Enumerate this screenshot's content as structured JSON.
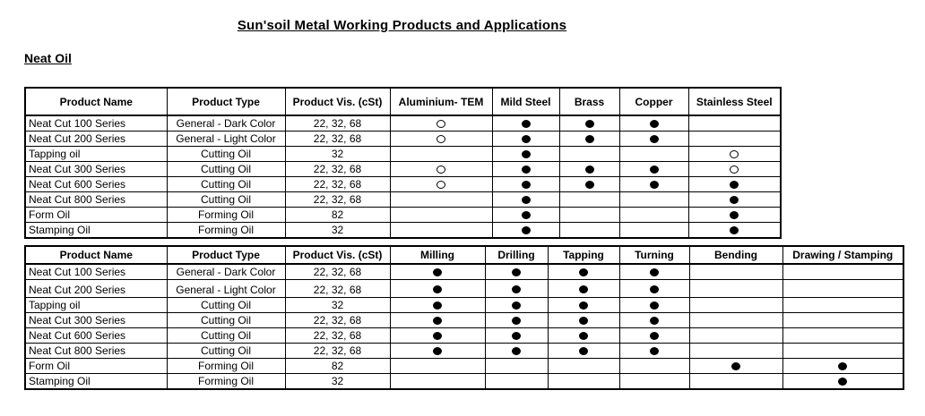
{
  "page": {
    "title": "Sun'soil Metal Working Products and Applications",
    "section_label": "Neat Oil"
  },
  "markers": {
    "filled_marker_icon": "●",
    "open_marker_icon": "○",
    "marker_color": "#000000"
  },
  "materials_table": {
    "columns": [
      "Product Name",
      "Product Type",
      "Product Vis. (cSt)",
      "Aluminium- TEM",
      "Mild Steel",
      "Brass",
      "Copper",
      "Stainless Steel"
    ],
    "rows": [
      {
        "name": "Neat Cut 100 Series",
        "type": "General - Dark Color",
        "vis": "22, 32, 68",
        "marks": [
          "open",
          "filled",
          "filled",
          "filled",
          ""
        ]
      },
      {
        "name": "Neat Cut 200 Series",
        "type": "General - Light Color",
        "vis": "22, 32, 68",
        "marks": [
          "open",
          "filled",
          "filled",
          "filled",
          ""
        ]
      },
      {
        "name": "Tapping oil",
        "type": "Cutting Oil",
        "vis": "32",
        "marks": [
          "",
          "filled",
          "",
          "",
          "open"
        ]
      },
      {
        "name": "Neat Cut 300 Series",
        "type": "Cutting Oil",
        "vis": "22, 32, 68",
        "marks": [
          "open",
          "filled",
          "filled",
          "filled",
          "open"
        ]
      },
      {
        "name": "Neat Cut 600 Series",
        "type": "Cutting Oil",
        "vis": "22, 32, 68",
        "marks": [
          "open",
          "filled",
          "filled",
          "filled",
          "filled"
        ]
      },
      {
        "name": "Neat Cut 800 Series",
        "type": "Cutting Oil",
        "vis": "22, 32, 68",
        "marks": [
          "",
          "filled",
          "",
          "",
          "filled"
        ]
      },
      {
        "name": "Form Oil",
        "type": "Forming Oil",
        "vis": "82",
        "marks": [
          "",
          "filled",
          "",
          "",
          "filled"
        ]
      },
      {
        "name": "Stamping Oil",
        "type": "Forming Oil",
        "vis": "32",
        "marks": [
          "",
          "filled",
          "",
          "",
          "filled"
        ]
      }
    ]
  },
  "applications_table": {
    "columns": [
      "Product Name",
      "Product Type",
      "Product Vis. (cSt)",
      "Milling",
      "Drilling",
      "Tapping",
      "Turning",
      "Bending",
      "Drawing / Stamping"
    ],
    "rows": [
      {
        "name": "Neat Cut 100 Series",
        "type": "General - Dark Color",
        "vis": "22, 32, 68",
        "marks": [
          "filled",
          "filled",
          "filled",
          "filled",
          "",
          ""
        ]
      },
      {
        "name": "Neat Cut 200 Series",
        "type": "General - Light Color",
        "vis": "22, 32, 68",
        "marks": [
          "filled",
          "filled",
          "filled",
          "filled",
          "",
          ""
        ],
        "tall": true
      },
      {
        "name": "Tapping oil",
        "type": "Cutting Oil",
        "vis": "32",
        "marks": [
          "filled",
          "filled",
          "filled",
          "filled",
          "",
          ""
        ]
      },
      {
        "name": "Neat Cut 300 Series",
        "type": "Cutting Oil",
        "vis": "22, 32, 68",
        "marks": [
          "filled",
          "filled",
          "filled",
          "filled",
          "",
          ""
        ]
      },
      {
        "name": "Neat Cut 600 Series",
        "type": "Cutting Oil",
        "vis": "22, 32, 68",
        "marks": [
          "filled",
          "filled",
          "filled",
          "filled",
          "",
          ""
        ]
      },
      {
        "name": "Neat Cut 800 Series",
        "type": "Cutting Oil",
        "vis": "22, 32, 68",
        "marks": [
          "filled",
          "filled",
          "filled",
          "filled",
          "",
          ""
        ]
      },
      {
        "name": "Form Oil",
        "type": "Forming Oil",
        "vis": "82",
        "marks": [
          "",
          "",
          "",
          "",
          "filled",
          "filled"
        ]
      },
      {
        "name": "Stamping Oil",
        "type": "Forming Oil",
        "vis": "32",
        "marks": [
          "",
          "",
          "",
          "",
          "",
          "filled"
        ]
      }
    ]
  }
}
